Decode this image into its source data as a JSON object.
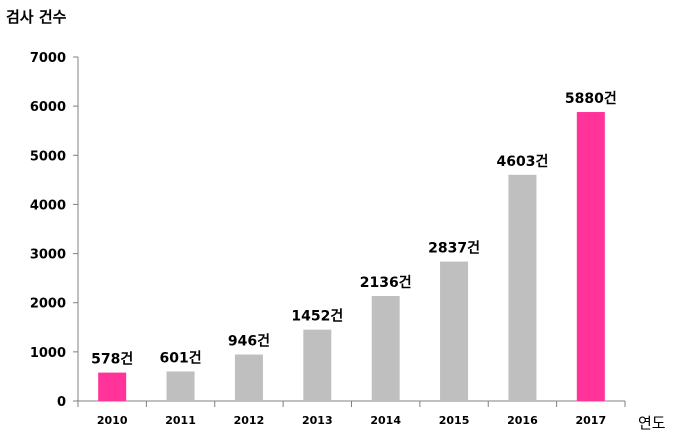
{
  "chart_data": {
    "type": "bar",
    "ylabel": "검사 건수",
    "xlabel": "연도",
    "categories": [
      "2010",
      "2011",
      "2012",
      "2013",
      "2014",
      "2015",
      "2016",
      "2017"
    ],
    "values": [
      578,
      601,
      946,
      1452,
      2136,
      2837,
      4603,
      5880
    ],
    "data_labels": [
      "578건",
      "601건",
      "946건",
      "1452건",
      "2136건",
      "2837건",
      "4603건",
      "5880건"
    ],
    "highlight": [
      true,
      false,
      false,
      false,
      false,
      false,
      false,
      true
    ],
    "ylim": [
      0,
      7000
    ],
    "yticks": [
      0,
      1000,
      2000,
      3000,
      4000,
      5000,
      6000,
      7000
    ],
    "grid": false,
    "colors": {
      "highlight": "#ff3399",
      "default": "#bfbfbf",
      "axis": "#808080"
    }
  }
}
